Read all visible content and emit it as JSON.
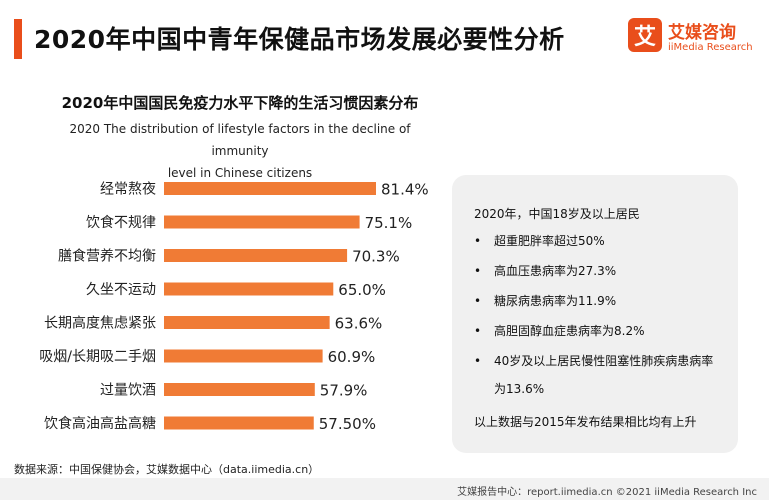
{
  "header": {
    "title": "2020年中国中青年保健品市场发展必要性分析",
    "accent_color": "#e94e1b"
  },
  "logo": {
    "mark": "艾",
    "name_cn": "艾媒咨询",
    "name_en": "iiMedia Research"
  },
  "chart_data": {
    "type": "bar",
    "orientation": "horizontal",
    "title": "2020年中国国民免疫力水平下降的生活习惯因素分布",
    "subtitle_line1": "2020 The distribution of lifestyle factors in the decline of immunity",
    "subtitle_line2": "level in Chinese citizens",
    "categories": [
      "经常熬夜",
      "饮食不规律",
      "膳食营养不均衡",
      "久坐不运动",
      "长期高度焦虑紧张",
      "吸烟/长期吸二手烟",
      "过量饮酒",
      "饮食高油高盐高糖"
    ],
    "values": [
      81.4,
      75.1,
      70.3,
      65.0,
      63.6,
      60.9,
      57.9,
      57.5
    ],
    "value_labels": [
      "81.4%",
      "75.1%",
      "70.3%",
      "65.0%",
      "63.6%",
      "60.9%",
      "57.9%",
      "57.50%"
    ],
    "bar_color": "#f07b35",
    "unit": "%",
    "grid": false,
    "legend": "none"
  },
  "info_box": {
    "heading": "2020年，中国18岁及以上居民",
    "bullet": "•",
    "items": [
      "超重肥胖率超过50%",
      "高血压患病率为27.3%",
      "糖尿病患病率为11.9%",
      "高胆固醇血症患病率为8.2%",
      "40岁及以上居民慢性阻塞性肺疾病患病率为13.6%"
    ],
    "footer": "以上数据与2015年发布结果相比均有上升"
  },
  "source": "数据来源：中国保健协会，艾媒数据中心（data.iimedia.cn）",
  "footer": "艾媒报告中心：report.iimedia.cn  ©2021  iiMedia Research Inc"
}
